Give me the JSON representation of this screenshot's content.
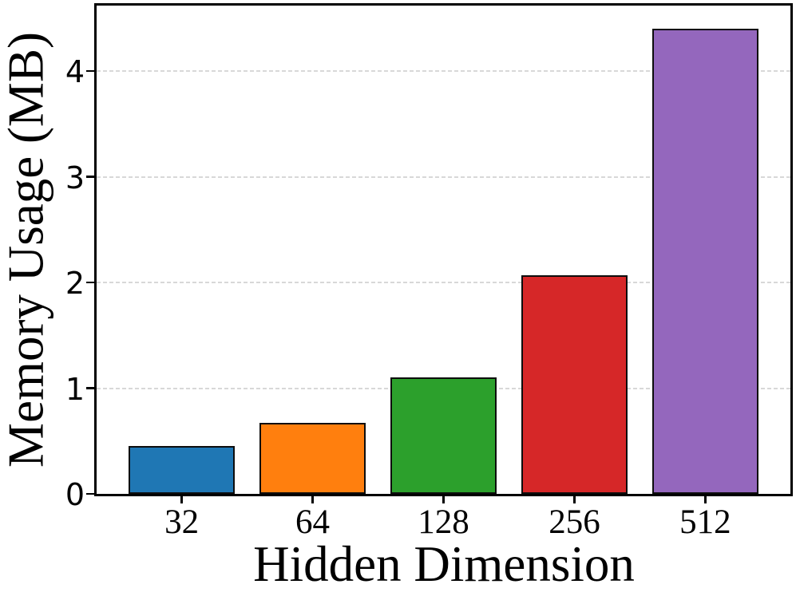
{
  "chart_data": {
    "type": "bar",
    "title": "",
    "xlabel": "Hidden Dimension",
    "ylabel": "Memory Usage (MB)",
    "categories": [
      "32",
      "64",
      "128",
      "256",
      "512"
    ],
    "values": [
      0.45,
      0.67,
      1.1,
      2.07,
      4.4
    ],
    "series_name": "Memory Usage",
    "bar_colors": [
      "#1f77b4",
      "#ff7f0e",
      "#2ca02c",
      "#d62728",
      "#9467bd"
    ],
    "bar_edge_color": "#000000",
    "yticks": [
      0,
      1,
      2,
      3,
      4
    ],
    "ylim": [
      0,
      4.62
    ],
    "grid": {
      "axis": "y",
      "style": "dashed",
      "color": "#d8d8d8",
      "on": true
    },
    "legend_position": "none",
    "background_color": "#ffffff",
    "spine_color": "#000000"
  }
}
